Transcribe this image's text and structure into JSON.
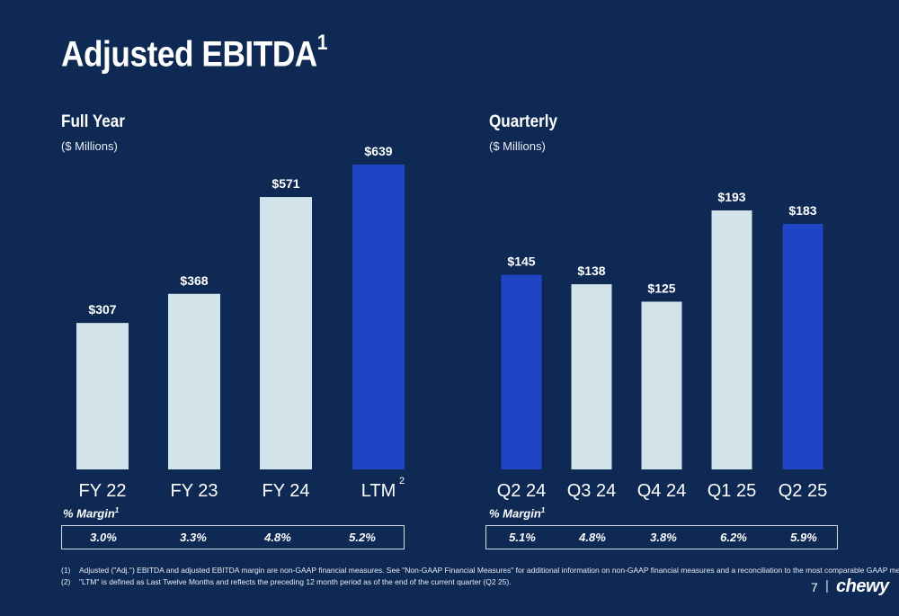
{
  "slide": {
    "title": "Adjusted EBITDA",
    "title_sup": "1",
    "page_number": "7",
    "page_separator": "|",
    "logo_text": "chewy"
  },
  "colors": {
    "background": "#0e2954",
    "bar_light": "#d3e3ea",
    "bar_highlight": "#1f44c4",
    "text": "#ffffff"
  },
  "sections": {
    "full_year": {
      "title": "Full Year",
      "unit": "($ Millions)",
      "margin_label": "% Margin",
      "margin_sup": "1",
      "margins": [
        "3.0%",
        "3.3%",
        "4.8%",
        "5.2%"
      ]
    },
    "quarterly": {
      "title": "Quarterly",
      "unit": "($ Millions)",
      "margin_label": "% Margin",
      "margin_sup": "1",
      "margins": [
        "5.1%",
        "4.8%",
        "3.8%",
        "6.2%",
        "5.9%"
      ]
    }
  },
  "chart_data": [
    {
      "type": "bar",
      "title": "Full Year",
      "ylabel": "($ Millions)",
      "categories": [
        "FY 22",
        "FY 23",
        "FY 24",
        "LTM"
      ],
      "category_sups": [
        "",
        "",
        "",
        "2"
      ],
      "values": [
        307,
        368,
        571,
        639
      ],
      "labels": [
        "$307",
        "$368",
        "$571",
        "$639"
      ],
      "highlight": [
        false,
        false,
        false,
        true
      ],
      "ylim": [
        0,
        639
      ],
      "grid": false
    },
    {
      "type": "bar",
      "title": "Quarterly",
      "ylabel": "($ Millions)",
      "categories": [
        "Q2 24",
        "Q3 24",
        "Q4 24",
        "Q1 25",
        "Q2 25"
      ],
      "category_sups": [
        "",
        "",
        "",
        "",
        ""
      ],
      "values": [
        145,
        138,
        125,
        193,
        183
      ],
      "labels": [
        "$145",
        "$138",
        "$125",
        "$193",
        "$183"
      ],
      "highlight": [
        true,
        false,
        false,
        false,
        true
      ],
      "ylim": [
        0,
        193
      ],
      "grid": false
    }
  ],
  "footnotes": [
    {
      "num": "(1)",
      "text": "Adjusted (\"Adj.\") EBITDA and adjusted EBITDA margin are non-GAAP financial measures. See \"Non-GAAP Financial Measures\" for additional information on non-GAAP financial measures and a reconciliation to the most comparable GAAP measures."
    },
    {
      "num": "(2)",
      "text": "\"LTM\" is defined as Last Twelve Months and reflects the preceding 12 month period as of the end of the current quarter (Q2 25)."
    }
  ]
}
